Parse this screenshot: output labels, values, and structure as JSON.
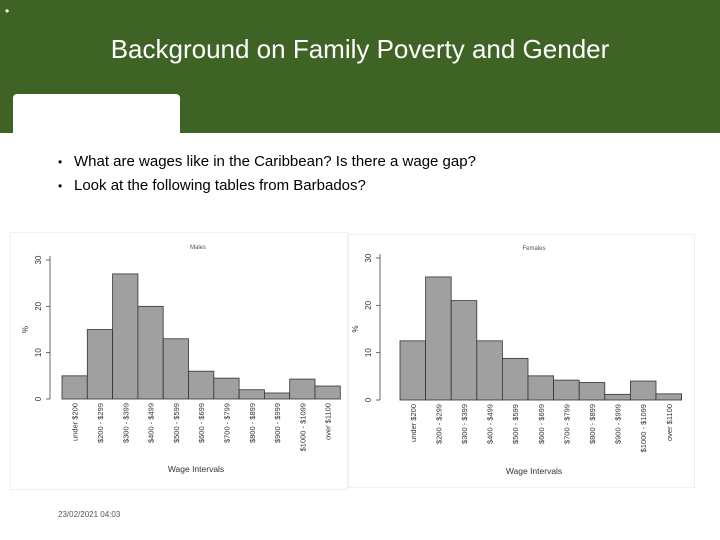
{
  "slide": {
    "marker": "•",
    "title": "Background on Family Poverty and Gender",
    "bullets": [
      "What are wages like in the Caribbean? Is there a wage gap?",
      "Look at the following tables from Barbados?"
    ],
    "footer": "23/02/2021 04:03"
  },
  "colors": {
    "header": "#3f6225",
    "bar": "#a0a0a0"
  },
  "chart_data": [
    {
      "type": "bar",
      "title": "Males",
      "xlabel": "Wage Intervals",
      "ylabel": "%",
      "ylim": [
        0,
        30
      ],
      "yticks": [
        0,
        10,
        20,
        30
      ],
      "categories": [
        "under $200",
        "$200 - $299",
        "$300 - $399",
        "$400 - $499",
        "$500 - $599",
        "$600 - $699",
        "$700 - $799",
        "$800 - $899",
        "$900 - $999",
        "$1000 - $1099",
        "over $1100"
      ],
      "values": [
        5,
        15,
        27,
        20,
        13,
        6,
        4.5,
        2,
        1.3,
        4.3,
        2.8
      ]
    },
    {
      "type": "bar",
      "title": "Females",
      "xlabel": "Wage Intervals",
      "ylabel": "%",
      "ylim": [
        0,
        30
      ],
      "yticks": [
        0,
        10,
        20,
        30
      ],
      "categories": [
        "under $200",
        "$200 - $299",
        "$300 - $399",
        "$400 - $499",
        "$500 - $599",
        "$600 - $699",
        "$700 - $799",
        "$800 - $899",
        "$900 - $999",
        "$1000 - $1099",
        "over $1100"
      ],
      "values": [
        12.5,
        26,
        21,
        12.5,
        8.8,
        5.1,
        4.2,
        3.7,
        1.2,
        4,
        1.3
      ]
    }
  ]
}
